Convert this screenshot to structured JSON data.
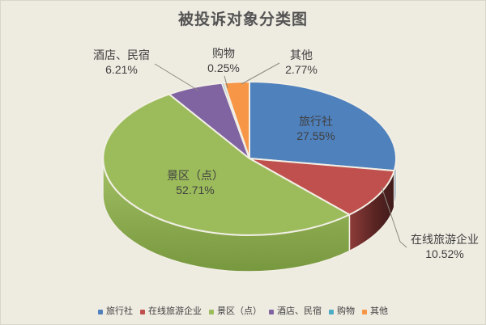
{
  "title": "被投诉对象分类图",
  "colors": {
    "background": "#EEEBE1",
    "title_text": "#545454",
    "label_text": "#3F3F3F",
    "leader_line": "#8C8A80",
    "slice_outline": "#F2EFE5"
  },
  "chart_data": {
    "type": "pie",
    "style": "3d",
    "title": "被投诉对象分类图",
    "direction": "clockwise",
    "start_angle_deg": 0,
    "legend_position": "bottom",
    "data_label_format": "{label}\n{value}%",
    "slices": [
      {
        "id": "travel-agency",
        "label": "旅行社",
        "value": 27.55,
        "color": "#4F81BD"
      },
      {
        "id": "online-travel-company",
        "label": "在线旅游企业",
        "value": 10.52,
        "color": "#C0504D"
      },
      {
        "id": "scenic-area",
        "label": "景区（点）",
        "value": 52.71,
        "color": "#9CBC5C"
      },
      {
        "id": "hotel-homestay",
        "label": "酒店、民宿",
        "value": 6.21,
        "color": "#8064A2"
      },
      {
        "id": "shopping",
        "label": "购物",
        "value": 0.25,
        "color": "#4BACC6"
      },
      {
        "id": "other",
        "label": "其他",
        "value": 2.77,
        "color": "#F79646"
      }
    ]
  }
}
